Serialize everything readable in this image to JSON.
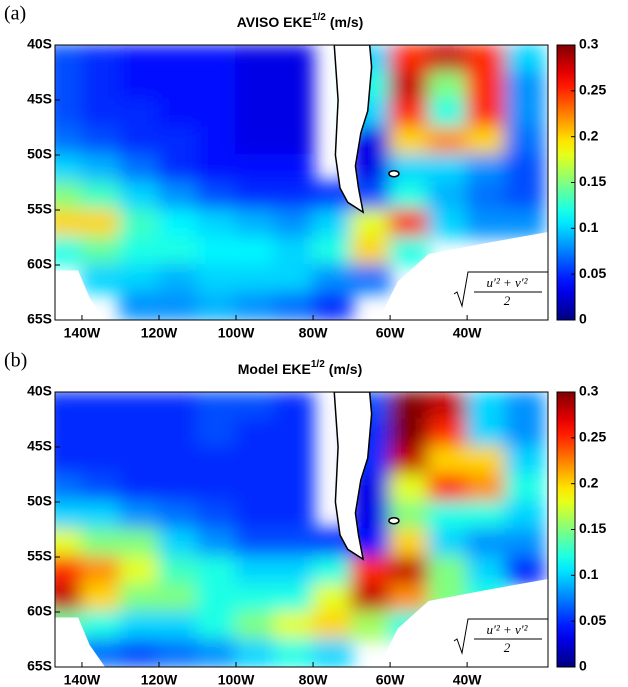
{
  "chart_data": [
    {
      "type": "heatmap",
      "panel_label": "(a)",
      "title": "AVISO EKE",
      "title_superscript": "1/2",
      "title_units": "(m/s)",
      "colormap": "jet",
      "x": [
        -145,
        -135,
        -125,
        -115,
        -105,
        -95,
        -85,
        -75,
        -65,
        -55,
        -45,
        -35,
        -25
      ],
      "y": [
        -41.25,
        -43.75,
        -46.25,
        -48.75,
        -51.25,
        -53.75,
        -56.25,
        -58.75,
        -61.25,
        -63.75
      ],
      "values": [
        [
          0.06,
          0.05,
          0.04,
          0.04,
          0.04,
          0.03,
          0.03,
          null,
          0.1,
          0.25,
          0.28,
          0.25,
          0.1
        ],
        [
          0.06,
          0.05,
          0.04,
          0.04,
          0.04,
          0.03,
          0.03,
          null,
          0.12,
          0.28,
          0.15,
          0.25,
          0.08
        ],
        [
          0.06,
          0.05,
          0.05,
          0.04,
          0.04,
          0.03,
          0.03,
          null,
          0.1,
          0.25,
          0.12,
          0.25,
          0.08
        ],
        [
          0.07,
          0.06,
          0.05,
          0.05,
          0.04,
          0.03,
          0.03,
          null,
          0.03,
          0.2,
          0.22,
          0.2,
          0.07
        ],
        [
          0.1,
          0.09,
          0.07,
          0.05,
          0.04,
          0.04,
          0.04,
          null,
          0.03,
          0.1,
          0.1,
          0.08,
          0.06
        ],
        [
          0.15,
          0.13,
          0.1,
          0.08,
          0.06,
          0.05,
          0.05,
          0.05,
          0.06,
          0.12,
          0.09,
          0.07,
          0.06
        ],
        [
          0.2,
          0.2,
          0.13,
          0.11,
          0.1,
          0.09,
          0.08,
          0.1,
          0.18,
          0.25,
          0.1,
          0.08,
          0.08
        ],
        [
          0.12,
          0.14,
          0.12,
          0.12,
          0.11,
          0.11,
          0.1,
          0.12,
          0.2,
          0.12,
          null,
          null,
          null
        ],
        [
          null,
          0.1,
          0.1,
          0.09,
          0.1,
          0.1,
          0.1,
          0.08,
          0.07,
          null,
          null,
          null,
          null
        ],
        [
          null,
          null,
          0.08,
          0.08,
          0.09,
          0.08,
          0.07,
          0.05,
          null,
          null,
          null,
          null,
          null
        ]
      ],
      "xlim": [
        -147,
        -19
      ],
      "ylim": [
        -65,
        -40
      ],
      "xticks": [
        {
          "value": -140,
          "label": "140W"
        },
        {
          "value": -120,
          "label": "120W"
        },
        {
          "value": -100,
          "label": "100W"
        },
        {
          "value": -80,
          "label": "80W"
        },
        {
          "value": -60,
          "label": "60W"
        },
        {
          "value": -40,
          "label": "40W"
        }
      ],
      "yticks": [
        {
          "value": -40,
          "label": "40S"
        },
        {
          "value": -45,
          "label": "45S"
        },
        {
          "value": -50,
          "label": "50S"
        },
        {
          "value": -55,
          "label": "55S"
        },
        {
          "value": -60,
          "label": "60S"
        },
        {
          "value": -65,
          "label": "65S"
        }
      ],
      "clim": [
        0,
        0.3
      ],
      "cticks": [
        0,
        0.05,
        0.1,
        0.15,
        0.2,
        0.25,
        0.3
      ],
      "annotation_numerator": "u′² + v′²",
      "annotation_denominator": "2"
    },
    {
      "type": "heatmap",
      "panel_label": "(b)",
      "title": "Model EKE",
      "title_superscript": "1/2",
      "title_units": "(m/s)",
      "colormap": "jet",
      "x": [
        -145,
        -135,
        -125,
        -115,
        -105,
        -95,
        -85,
        -75,
        -65,
        -55,
        -45,
        -35,
        -25
      ],
      "y": [
        -41.25,
        -43.75,
        -46.25,
        -48.75,
        -51.25,
        -53.75,
        -56.25,
        -58.75,
        -61.25,
        -63.75
      ],
      "values": [
        [
          0.05,
          0.05,
          0.05,
          0.05,
          0.06,
          0.06,
          0.05,
          null,
          0.06,
          0.3,
          0.28,
          0.1,
          0.08
        ],
        [
          0.05,
          0.05,
          0.05,
          0.05,
          0.06,
          0.05,
          0.05,
          null,
          0.05,
          0.3,
          0.25,
          0.1,
          0.08
        ],
        [
          0.05,
          0.05,
          0.05,
          0.05,
          0.05,
          0.05,
          0.05,
          null,
          0.05,
          0.28,
          0.2,
          0.2,
          0.1
        ],
        [
          0.07,
          0.06,
          0.05,
          0.05,
          0.05,
          0.05,
          0.05,
          null,
          0.03,
          0.18,
          0.25,
          0.22,
          0.12
        ],
        [
          0.1,
          0.1,
          0.08,
          0.07,
          0.06,
          0.05,
          0.05,
          null,
          0.03,
          0.15,
          0.12,
          0.12,
          0.1
        ],
        [
          0.18,
          0.15,
          0.15,
          0.1,
          0.08,
          0.06,
          0.06,
          0.05,
          0.04,
          0.2,
          0.1,
          0.08,
          0.08
        ],
        [
          0.25,
          0.22,
          0.18,
          0.13,
          0.12,
          0.1,
          0.1,
          0.12,
          0.25,
          0.28,
          0.15,
          0.1,
          0.05
        ],
        [
          0.28,
          0.2,
          0.15,
          0.15,
          0.12,
          0.12,
          0.12,
          0.18,
          0.28,
          0.22,
          0.15,
          0.12,
          null
        ],
        [
          0.14,
          0.12,
          0.1,
          0.1,
          0.12,
          0.15,
          0.18,
          0.2,
          0.16,
          0.12,
          null,
          null,
          null
        ],
        [
          0.08,
          0.07,
          0.06,
          0.07,
          0.08,
          0.1,
          0.12,
          0.1,
          null,
          null,
          null,
          null,
          null
        ]
      ],
      "xlim": [
        -147,
        -19
      ],
      "ylim": [
        -65,
        -40
      ],
      "xticks": [
        {
          "value": -140,
          "label": "140W"
        },
        {
          "value": -120,
          "label": "120W"
        },
        {
          "value": -100,
          "label": "100W"
        },
        {
          "value": -80,
          "label": "80W"
        },
        {
          "value": -60,
          "label": "60W"
        },
        {
          "value": -40,
          "label": "40W"
        }
      ],
      "yticks": [
        {
          "value": -40,
          "label": "40S"
        },
        {
          "value": -45,
          "label": "45S"
        },
        {
          "value": -50,
          "label": "50S"
        },
        {
          "value": -55,
          "label": "55S"
        },
        {
          "value": -60,
          "label": "60S"
        },
        {
          "value": -65,
          "label": "65S"
        }
      ],
      "clim": [
        0,
        0.3
      ],
      "cticks": [
        0,
        0.05,
        0.1,
        0.15,
        0.2,
        0.25,
        0.3
      ],
      "annotation_numerator": "u′² + v′²",
      "annotation_denominator": "2"
    }
  ]
}
